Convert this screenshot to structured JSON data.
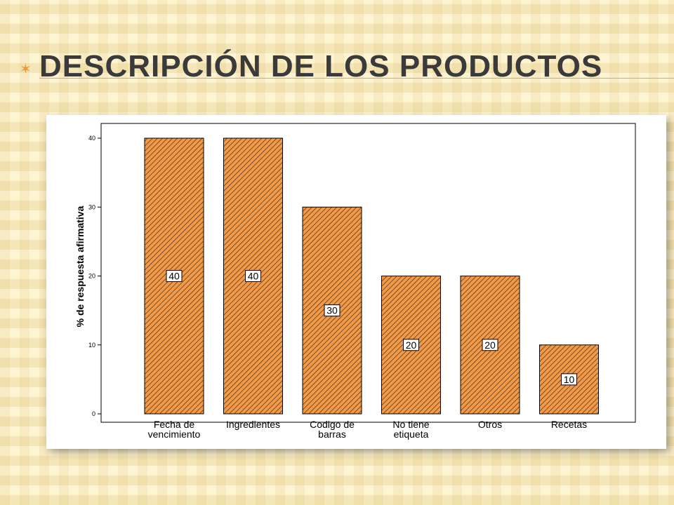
{
  "slide": {
    "bullet_icon": "star-bullet-icon",
    "title": "Descripción de los productos"
  },
  "colors": {
    "bar_fill": "#f29a48",
    "bar_hatch": "#5a3a1e",
    "accent": "#e3a35a"
  },
  "chart_data": {
    "type": "bar",
    "categories": [
      [
        "Fecha de",
        "vencimiento"
      ],
      [
        "Ingredientes"
      ],
      [
        "Codigo de",
        "barras"
      ],
      [
        "No tiene",
        "etiqueta"
      ],
      [
        "Otros"
      ],
      [
        "Recetas"
      ]
    ],
    "values": [
      40,
      40,
      30,
      20,
      20,
      10
    ],
    "data_labels": [
      "40",
      "40",
      "30",
      "20",
      "20",
      "10"
    ],
    "ylabel": "% de respuesta afirmativa",
    "xlabel": "",
    "ylim": [
      0,
      40
    ],
    "yticks": [
      0,
      10,
      20,
      30,
      40
    ],
    "grid": false,
    "bar_pattern": "diagonal-hatch"
  }
}
